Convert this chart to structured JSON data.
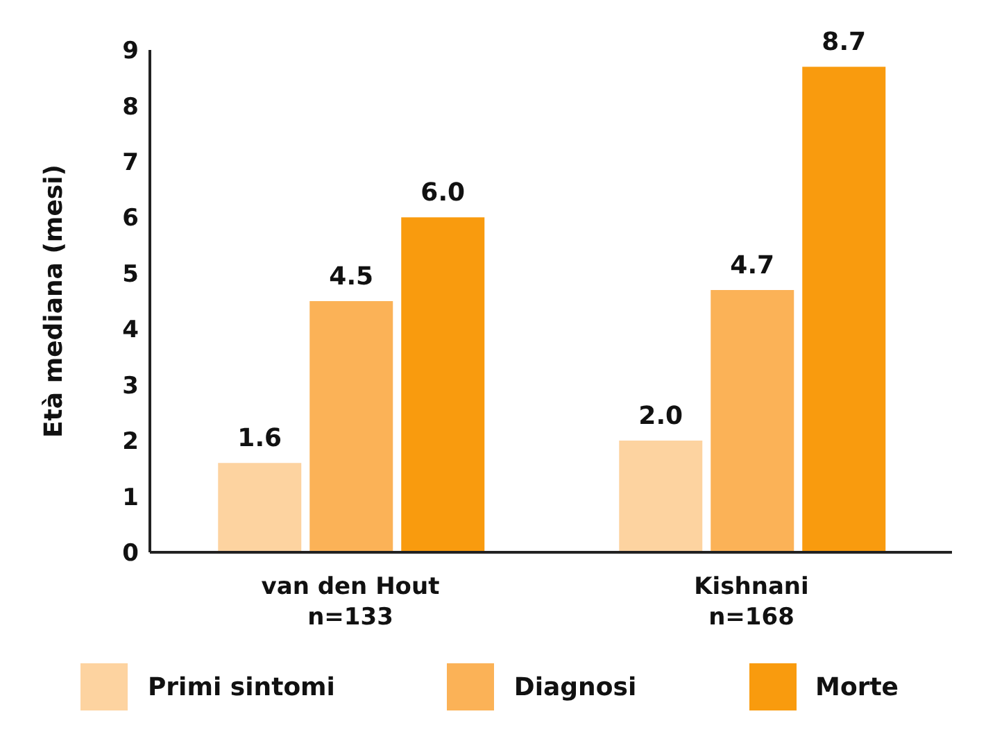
{
  "chart_data": {
    "type": "bar",
    "ylabel": "Età mediana (mesi)",
    "categories": [
      "van den Hout\nn=133",
      "Kishnani\nn=168"
    ],
    "series": [
      {
        "name": "Primi sintomi",
        "color": "#fdd3a0",
        "values": [
          1.6,
          2.0
        ],
        "value_labels": [
          "1.6",
          "2.0"
        ]
      },
      {
        "name": "Diagnosi",
        "color": "#fbb257",
        "values": [
          4.5,
          4.7
        ],
        "value_labels": [
          "4.5",
          "4.7"
        ]
      },
      {
        "name": "Morte",
        "color": "#f99b0e",
        "values": [
          6.0,
          8.7
        ],
        "value_labels": [
          "6.0",
          "8.7"
        ]
      }
    ],
    "ylim": [
      0,
      9
    ],
    "yticks": [
      0,
      1,
      2,
      3,
      4,
      5,
      6,
      7,
      8,
      9
    ],
    "grid": false,
    "legend": "bottom"
  }
}
